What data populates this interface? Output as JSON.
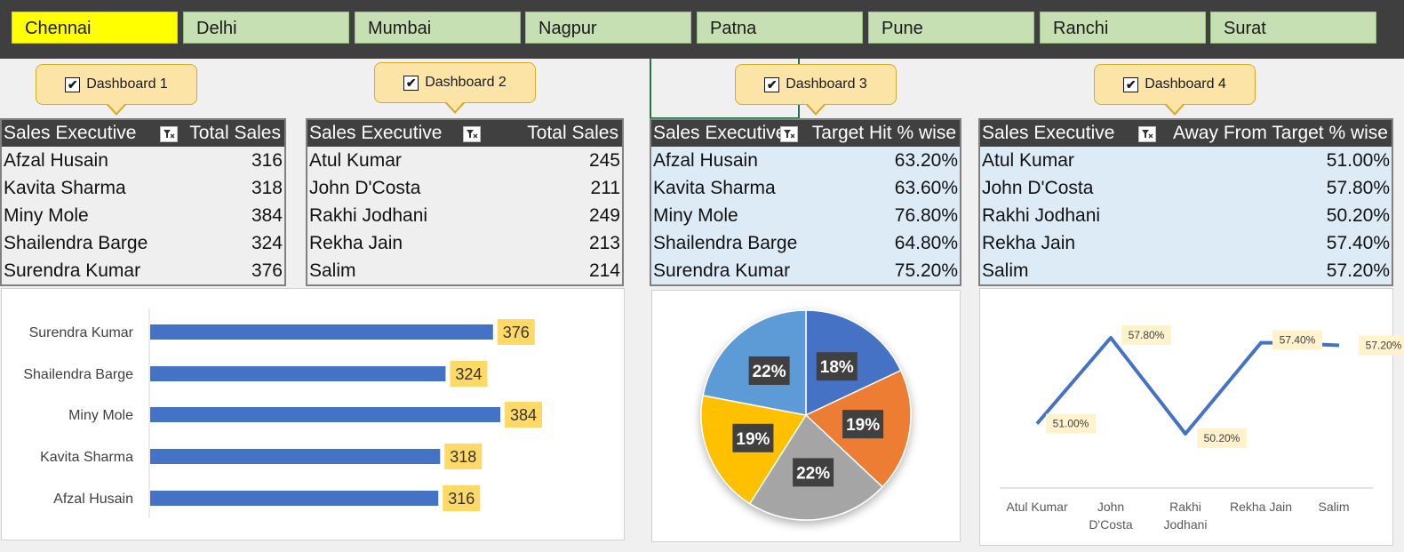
{
  "cities": [
    {
      "label": "Chennai",
      "active": true
    },
    {
      "label": "Delhi",
      "active": false
    },
    {
      "label": "Mumbai",
      "active": false
    },
    {
      "label": "Nagpur",
      "active": false
    },
    {
      "label": "Patna",
      "active": false
    },
    {
      "label": "Pune",
      "active": false
    },
    {
      "label": "Ranchi",
      "active": false
    },
    {
      "label": "Surat",
      "active": false
    }
  ],
  "dashboards": [
    {
      "label": "Dashboard 1",
      "checked": true
    },
    {
      "label": "Dashboard 2",
      "checked": true
    },
    {
      "label": "Dashboard 3",
      "checked": true
    },
    {
      "label": "Dashboard 4",
      "checked": true
    }
  ],
  "tables": [
    {
      "col1": "Sales Executive",
      "col2": "Total Sales",
      "rows": [
        [
          "Afzal Husain",
          "316"
        ],
        [
          "Kavita Sharma",
          "318"
        ],
        [
          "Miny Mole",
          "384"
        ],
        [
          "Shailendra Barge",
          "324"
        ],
        [
          "Surendra Kumar",
          "376"
        ]
      ]
    },
    {
      "col1": "Sales Executive",
      "col2": "Total Sales",
      "rows": [
        [
          "Atul Kumar",
          "245"
        ],
        [
          "John D'Costa",
          "211"
        ],
        [
          "Rakhi Jodhani",
          "249"
        ],
        [
          "Rekha Jain",
          "213"
        ],
        [
          "Salim",
          "214"
        ]
      ]
    },
    {
      "col1": "Sales Executive",
      "col2": "Target Hit % wise",
      "rows": [
        [
          "Afzal Husain",
          "63.20%"
        ],
        [
          "Kavita Sharma",
          "63.60%"
        ],
        [
          "Miny Mole",
          "76.80%"
        ],
        [
          "Shailendra Barge",
          "64.80%"
        ],
        [
          "Surendra Kumar",
          "75.20%"
        ]
      ]
    },
    {
      "col1": "Sales Executive",
      "col2": "Away From Target % wise",
      "rows": [
        [
          "Atul Kumar",
          "51.00%"
        ],
        [
          "John D'Costa",
          "57.80%"
        ],
        [
          "Rakhi Jodhani",
          "50.20%"
        ],
        [
          "Rekha Jain",
          "57.40%"
        ],
        [
          "Salim",
          "57.20%"
        ]
      ]
    }
  ],
  "colors": {
    "bar": "#4472c4",
    "label_bg": "#ffd966",
    "pie": [
      "#4472c4",
      "#ed7d31",
      "#a5a5a5",
      "#ffc000",
      "#5b9bd5"
    ],
    "line": "#4472c4"
  },
  "chart_data": [
    {
      "type": "bar",
      "orientation": "horizontal",
      "categories": [
        "Surendra Kumar",
        "Shailendra Barge",
        "Miny Mole",
        "Kavita Sharma",
        "Afzal Husain"
      ],
      "values": [
        376,
        324,
        384,
        318,
        316
      ],
      "data_labels": [
        "376",
        "324",
        "384",
        "318",
        "316"
      ]
    },
    {
      "type": "pie",
      "values": [
        18,
        19,
        22,
        19,
        22
      ],
      "data_labels": [
        "18%",
        "19%",
        "22%",
        "19%",
        "22%"
      ]
    },
    {
      "type": "line",
      "categories": [
        "Atul Kumar",
        "John D'Costa",
        "Rakhi Jodhani",
        "Rekha Jain",
        "Salim"
      ],
      "values": [
        51.0,
        57.8,
        50.2,
        57.4,
        57.2
      ],
      "data_labels": [
        "51.00%",
        "57.80%",
        "50.20%",
        "57.40%",
        "57.20%"
      ]
    }
  ]
}
